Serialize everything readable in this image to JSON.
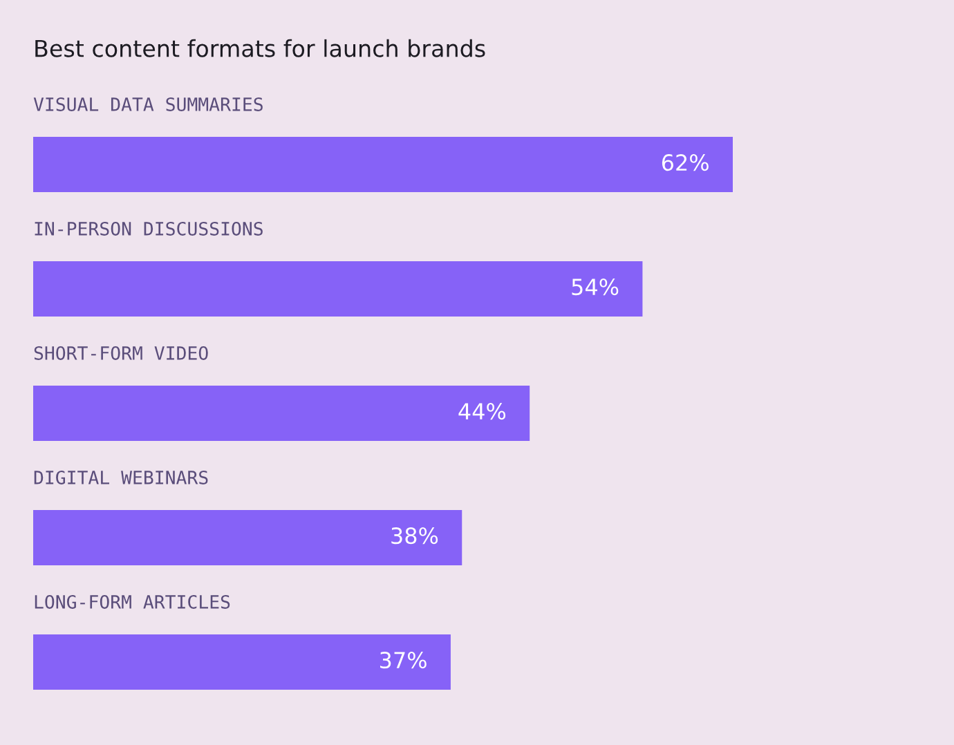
{
  "chart_data": {
    "type": "bar",
    "orientation": "horizontal",
    "title": "Best content formats for launch brands",
    "categories": [
      "VISUAL DATA SUMMARIES",
      "IN-PERSON DISCUSSIONS",
      "SHORT-FORM VIDEO",
      "DIGITAL WEBINARS",
      "LONG-FORM ARTICLES"
    ],
    "values": [
      62,
      54,
      44,
      38,
      37
    ],
    "value_labels": [
      "62%",
      "54%",
      "44%",
      "38%",
      "37%"
    ],
    "color": "#8662f7",
    "tick_labels": false
  }
}
